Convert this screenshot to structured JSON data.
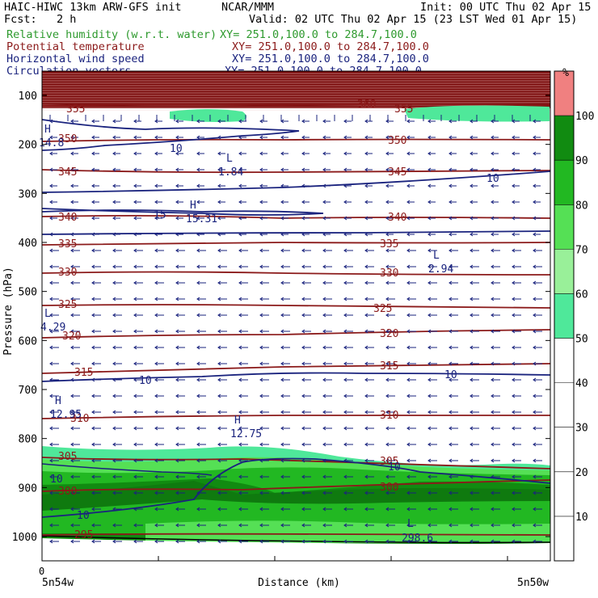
{
  "header": {
    "model": "HAIC-HIWC 13km ARW-GFS init",
    "org": "NCAR/MMM",
    "init": "Init: 00 UTC Thu 02 Apr 15",
    "fcst_label": "Fcst:",
    "fcst_value": "2 h",
    "valid": "Valid: 02 UTC Thu 02 Apr 15 (23 LST Wed 01 Apr 15)"
  },
  "legend": [
    {
      "name": "Relative humidity (w.r.t. water)",
      "xy": "XY= 251.0,100.0 to 284.7,100.0",
      "color": "#2e9a2e"
    },
    {
      "name": "Potential temperature",
      "xy": "XY= 251.0,100.0 to 284.7,100.0",
      "color": "#8b1a1a"
    },
    {
      "name": "Horizontal wind speed",
      "xy": "XY= 251.0,100.0 to 284.7,100.0",
      "color": "#1a237e"
    },
    {
      "name": "Circulation vectors",
      "xy": "XY= 251.0,100.0 to 284.7,100.0",
      "color": "#1a237e"
    }
  ],
  "colorbar": {
    "unit": "%",
    "levels": [
      10,
      20,
      30,
      40,
      50,
      60,
      70,
      80,
      90,
      100
    ],
    "bands": [
      {
        "from": 0,
        "to": 50,
        "color": "#ffffff"
      },
      {
        "from": 50,
        "to": 60,
        "color": "#4fe89a"
      },
      {
        "from": 60,
        "to": 70,
        "color": "#99f099"
      },
      {
        "from": 70,
        "to": 80,
        "color": "#55e055"
      },
      {
        "from": 80,
        "to": 90,
        "color": "#22b822"
      },
      {
        "from": 90,
        "to": 100,
        "color": "#118b11"
      },
      {
        "from": 100,
        "to": 110,
        "color": "#f08080"
      }
    ]
  },
  "chart_data": {
    "type": "cross-section",
    "ylabel": "Pressure (hPa)",
    "xlabel": "Distance (km)",
    "y_ticks": [
      100,
      200,
      300,
      400,
      500,
      600,
      700,
      800,
      900,
      1000
    ],
    "ylim": [
      1050,
      60
    ],
    "x_tick_zero": "0",
    "x_left_label": "5n54w",
    "x_right_label": "5n50w",
    "theta_contours": [
      {
        "value": 355,
        "p": 130,
        "labels": [
          "355",
          "355"
        ]
      },
      {
        "value": 350,
        "p": 180,
        "labels": [
          "350",
          "350"
        ]
      },
      {
        "value": 345,
        "p": 225,
        "labels": [
          "345",
          "345"
        ]
      },
      {
        "value": 340,
        "p": 338,
        "labels": [
          "340",
          "340"
        ]
      },
      {
        "value": 335,
        "p": 400,
        "labels": [
          "335",
          "335"
        ]
      },
      {
        "value": 330,
        "p": 460,
        "labels": [
          "330",
          "330"
        ]
      },
      {
        "value": 325,
        "p": 530,
        "labels": [
          "325",
          "325"
        ]
      },
      {
        "value": 320,
        "p": 595,
        "labels": [
          "320",
          "320"
        ]
      },
      {
        "value": 315,
        "p": 660,
        "labels": [
          "315",
          "315"
        ]
      },
      {
        "value": 310,
        "p": 755,
        "labels": [
          "310",
          "310"
        ]
      },
      {
        "value": 305,
        "p": 840,
        "labels": [
          "305",
          "305"
        ]
      },
      {
        "value": 300,
        "p": 905,
        "labels": [
          "300",
          "300"
        ]
      },
      {
        "value": 295,
        "p": 1000,
        "labels": [
          "295"
        ]
      }
    ],
    "wind_contours": [
      {
        "value": 10,
        "p": 195,
        "labels": [
          "10"
        ]
      },
      {
        "value": 15,
        "p": 338,
        "labels": [
          "15"
        ]
      },
      {
        "value": 10,
        "p": 670,
        "labels": [
          "10",
          "10"
        ]
      },
      {
        "value": 10,
        "p": 885,
        "labels": [
          "10",
          "10",
          "10"
        ]
      }
    ],
    "extrema": [
      {
        "kind": "H",
        "value": "14.8"
      },
      {
        "kind": "L",
        "value": "1.84"
      },
      {
        "kind": "H",
        "value": "15.31"
      },
      {
        "kind": "L",
        "value": "2.94"
      },
      {
        "kind": "L",
        "value": "4.29"
      },
      {
        "kind": "H",
        "value": "12.95"
      },
      {
        "kind": "H",
        "value": "12.75"
      },
      {
        "kind": "L",
        "value": "298.6"
      }
    ],
    "extra_labels": [
      "360"
    ],
    "vector_direction": "easterly (arrows point west)"
  }
}
